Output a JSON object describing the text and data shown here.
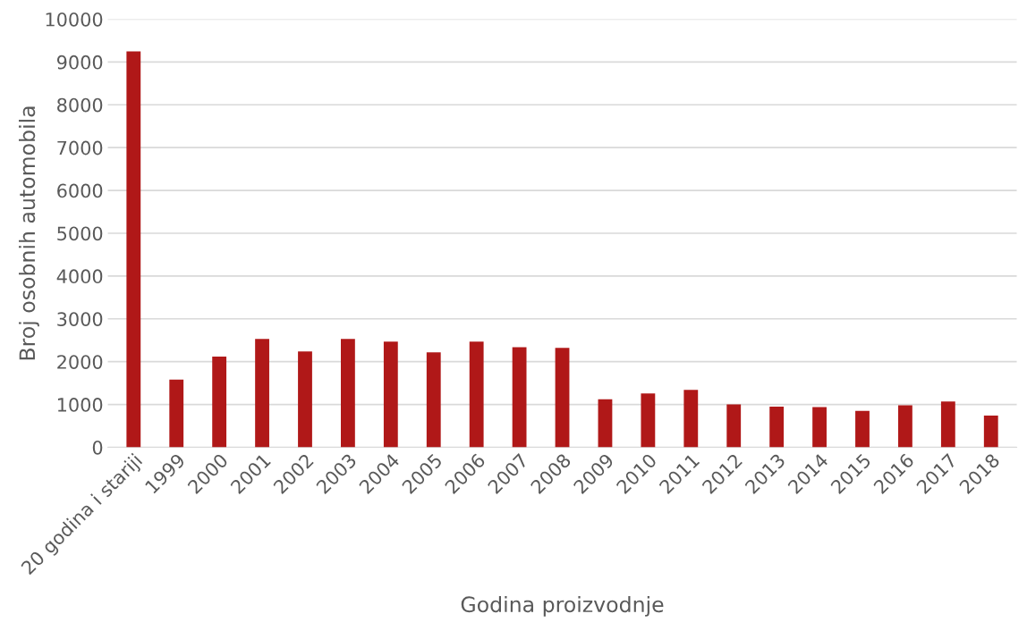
{
  "chart_data": {
    "type": "bar",
    "xlabel": "Godina proizvodnje",
    "ylabel": "Broj osobnih automobila",
    "categories": [
      "20 godina i stariji",
      "1999",
      "2000",
      "2001",
      "2002",
      "2003",
      "2004",
      "2005",
      "2006",
      "2007",
      "2008",
      "2009",
      "2010",
      "2011",
      "2012",
      "2013",
      "2014",
      "2015",
      "2016",
      "2017",
      "2018"
    ],
    "values": [
      9250,
      1580,
      2120,
      2530,
      2240,
      2530,
      2470,
      2220,
      2470,
      2340,
      2320,
      1120,
      1260,
      1340,
      1000,
      950,
      940,
      850,
      980,
      1070,
      740
    ],
    "color": "#b01818",
    "ylim": [
      0,
      10000
    ],
    "yticks": [
      0,
      1000,
      2000,
      3000,
      4000,
      5000,
      6000,
      7000,
      8000,
      9000,
      10000
    ],
    "grid": "y"
  }
}
